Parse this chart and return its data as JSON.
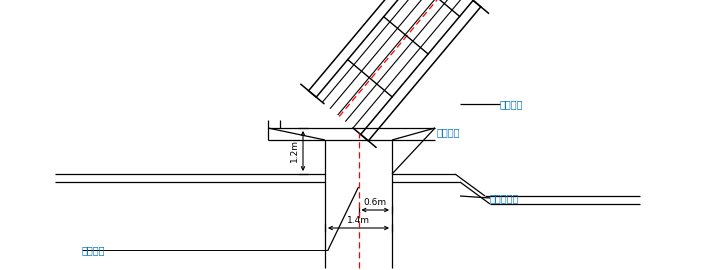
{
  "bg_color": "#ffffff",
  "line_color": "#000000",
  "red_dash_color": "#ff0000",
  "blue_text_color": "#0070c0",
  "figsize": [
    7.11,
    2.7
  ],
  "dpi": 100,
  "labels": {
    "dingwei": "定位型钢",
    "wuhu_top": "墨护内边",
    "wuhu_bottom": "墨护内边线",
    "center": "中心轴线",
    "dim_06": "0.6m",
    "dim_14": "1.4m",
    "dim_12": "1.2m"
  }
}
